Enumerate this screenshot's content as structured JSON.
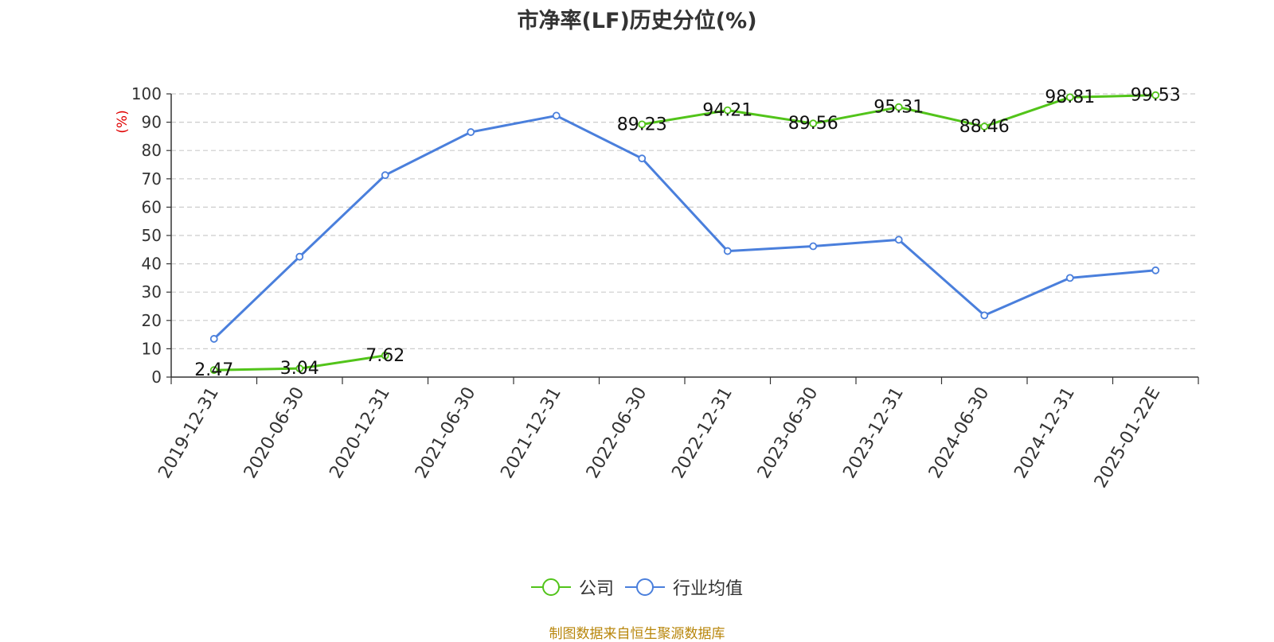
{
  "chart_data": {
    "type": "line",
    "title": "市净率(LF)历史分位(%)",
    "ylabel": "(%)",
    "xlabel": "",
    "ylim": [
      0,
      100
    ],
    "yticks": [
      0,
      10,
      20,
      30,
      40,
      50,
      60,
      70,
      80,
      90,
      100
    ],
    "categories": [
      "2019-12-31",
      "2020-06-30",
      "2020-12-31",
      "2021-06-30",
      "2021-12-31",
      "2022-06-30",
      "2022-12-31",
      "2023-06-30",
      "2023-12-31",
      "2024-06-30",
      "2024-12-31",
      "2025-01-22E"
    ],
    "grid": true,
    "legend_position": "bottom",
    "series": [
      {
        "name": "公司",
        "color": "#52c41a",
        "values": [
          2.47,
          3.04,
          7.62,
          null,
          null,
          89.23,
          94.21,
          89.56,
          95.31,
          88.46,
          98.81,
          99.53
        ],
        "labels": [
          "2.47",
          "3.04",
          "7.62",
          "",
          "",
          "89.23",
          "94.21",
          "89.56",
          "95.31",
          "88.46",
          "98.81",
          "99.53"
        ]
      },
      {
        "name": "行业均值",
        "color": "#4a7fdc",
        "values": [
          13.5,
          42.5,
          71.3,
          86.5,
          92.3,
          77.2,
          44.5,
          46.2,
          48.5,
          21.8,
          35.0,
          37.7
        ]
      }
    ]
  },
  "source_note": "制图数据来自恒生聚源数据库"
}
